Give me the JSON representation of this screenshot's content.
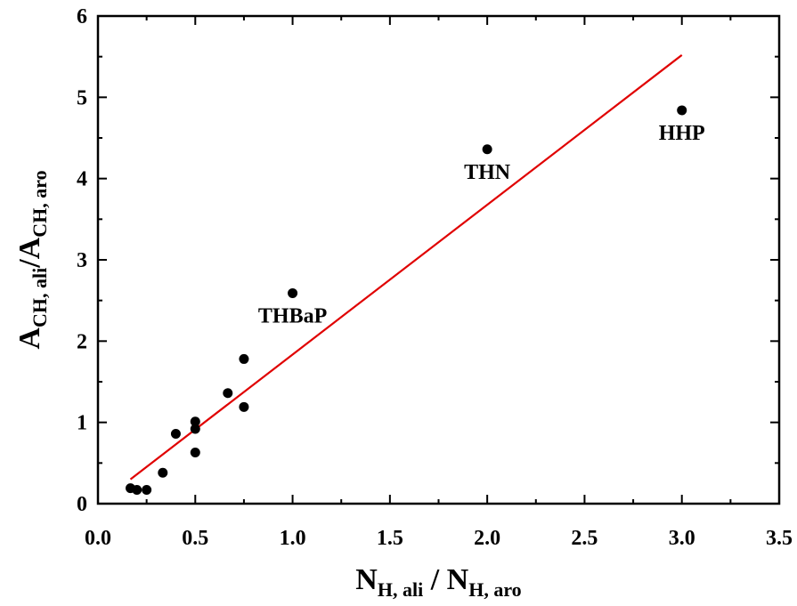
{
  "chart_data": {
    "type": "scatter",
    "title": "",
    "xlabel": {
      "main": "N",
      "sub1": "H, ali",
      "sep": " / N",
      "sub2": "H, aro"
    },
    "ylabel": {
      "main": "A",
      "sub1": "CH, ali",
      "sep": "/A",
      "sub2": "CH, aro"
    },
    "xlim": [
      0.0,
      3.5
    ],
    "ylim": [
      0,
      6
    ],
    "x_ticks": [
      0.0,
      0.5,
      1.0,
      1.5,
      2.0,
      2.5,
      3.0,
      3.5
    ],
    "x_tick_labels": [
      "0.0",
      "0.5",
      "1.0",
      "1.5",
      "2.0",
      "2.5",
      "3.0",
      "3.5"
    ],
    "y_ticks": [
      0,
      1,
      2,
      3,
      4,
      5,
      6
    ],
    "y_tick_labels": [
      "0",
      "1",
      "2",
      "3",
      "4",
      "5",
      "6"
    ],
    "grid": false,
    "legend": "none",
    "series": [
      {
        "color": "#000000",
        "points": [
          {
            "x": 0.167,
            "y": 0.19
          },
          {
            "x": 0.2,
            "y": 0.17
          },
          {
            "x": 0.25,
            "y": 0.17
          },
          {
            "x": 0.333,
            "y": 0.38
          },
          {
            "x": 0.4,
            "y": 0.86
          },
          {
            "x": 0.5,
            "y": 1.01
          },
          {
            "x": 0.5,
            "y": 0.92
          },
          {
            "x": 0.5,
            "y": 0.63
          },
          {
            "x": 0.667,
            "y": 1.36
          },
          {
            "x": 0.75,
            "y": 1.78
          },
          {
            "x": 0.75,
            "y": 1.19
          },
          {
            "x": 1.0,
            "y": 2.59
          },
          {
            "x": 2.0,
            "y": 4.36
          },
          {
            "x": 3.0,
            "y": 4.84
          }
        ]
      }
    ],
    "fit_line": {
      "color": "#e00000",
      "x": [
        0.167,
        3.0
      ],
      "y": [
        0.3,
        5.52
      ]
    },
    "annotations": [
      {
        "text": "THBaP",
        "x": 1.0,
        "y": 2.59,
        "anchor": "below"
      },
      {
        "text": "THN",
        "x": 2.0,
        "y": 4.36,
        "anchor": "below"
      },
      {
        "text": "HHP",
        "x": 3.0,
        "y": 4.84,
        "anchor": "below"
      }
    ]
  }
}
